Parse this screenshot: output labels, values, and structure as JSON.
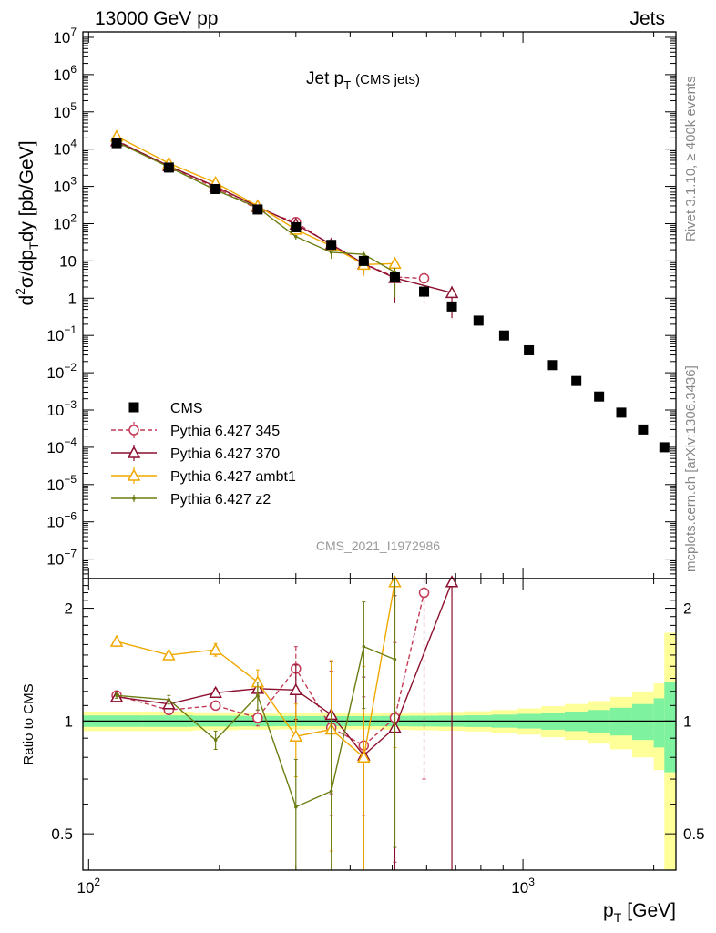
{
  "header": {
    "left": "13000 GeV pp",
    "right": "Jets"
  },
  "side_labels": {
    "rivet": "Rivet 3.1.10, ≥ 400k events",
    "mcplots": "mcplots.cern.ch [arXiv:1306.3436]"
  },
  "chart_data": {
    "type": "scatter",
    "title": "Jet p_T (CMS jets)",
    "title_main": "Jet p",
    "title_sub": "T",
    "title_tail": "(CMS jets)",
    "watermark": "CMS_2021_I1972986",
    "xlabel": "p_T [GeV]",
    "xlabel_main": "p",
    "xlabel_sub": "T",
    "xlabel_tail": "[GeV]",
    "xscale": "log",
    "xlim": [
      97,
      2250
    ],
    "x_tick_labels": [
      {
        "value": 100,
        "base": "10",
        "exp": "2"
      },
      {
        "value": 1000,
        "base": "10",
        "exp": "3"
      }
    ],
    "main": {
      "ylabel": "d²σ/dp_T dy [pb/GeV]",
      "ylabel_parts": {
        "a": "d",
        "a_sup": "2",
        "b": "σ/dp",
        "b_sub": "T",
        "c": "dy [pb/GeV]"
      },
      "yscale": "log",
      "ylim": [
        3e-08,
        14000000.0
      ],
      "y_tick_labels": [
        {
          "value": 10000000.0,
          "base": "10",
          "exp": "7"
        },
        {
          "value": 1000000.0,
          "base": "10",
          "exp": "6"
        },
        {
          "value": 100000.0,
          "base": "10",
          "exp": "5"
        },
        {
          "value": 10000.0,
          "base": "10",
          "exp": "4"
        },
        {
          "value": 1000.0,
          "base": "10",
          "exp": "3"
        },
        {
          "value": 100.0,
          "base": "10",
          "exp": "2"
        },
        {
          "value": 10,
          "base": "10",
          "exp": ""
        },
        {
          "value": 1,
          "base": "1",
          "exp": ""
        },
        {
          "value": 0.1,
          "base": "10",
          "exp": "−1"
        },
        {
          "value": 0.01,
          "base": "10",
          "exp": "−2"
        },
        {
          "value": 0.001,
          "base": "10",
          "exp": "−3"
        },
        {
          "value": 0.0001,
          "base": "10",
          "exp": "−4"
        },
        {
          "value": 1e-05,
          "base": "10",
          "exp": "−5"
        },
        {
          "value": 1e-06,
          "base": "10",
          "exp": "−6"
        },
        {
          "value": 1e-07,
          "base": "10",
          "exp": "−7"
        }
      ],
      "legend_position": "lower-left"
    },
    "ratio": {
      "ylabel": "Ratio to CMS",
      "yscale": "log",
      "ylim": [
        0.4,
        2.4
      ],
      "y_tick_labels": [
        {
          "value": 2,
          "label": "2"
        },
        {
          "value": 1,
          "label": "1"
        },
        {
          "value": 0.5,
          "label": "0.5"
        }
      ],
      "band_edges": [
        97,
        133,
        174,
        220,
        272,
        330,
        395,
        468,
        548,
        638,
        737,
        846,
        967,
        1101,
        1248,
        1410,
        1588,
        1784,
        2000,
        2116,
        2250
      ],
      "band_inner_half_width": [
        0.035,
        0.035,
        0.033,
        0.032,
        0.031,
        0.031,
        0.031,
        0.032,
        0.033,
        0.034,
        0.036,
        0.04,
        0.045,
        0.052,
        0.06,
        0.07,
        0.085,
        0.11,
        0.15,
        0.27
      ],
      "band_outer_half_width": [
        0.06,
        0.06,
        0.055,
        0.052,
        0.05,
        0.05,
        0.05,
        0.052,
        0.055,
        0.058,
        0.062,
        0.07,
        0.08,
        0.095,
        0.11,
        0.13,
        0.16,
        0.2,
        0.26,
        0.72
      ]
    },
    "series": [
      {
        "name": "CMS",
        "color": "#000000",
        "marker": "square",
        "x": [
          116,
          153,
          196,
          245,
          300,
          362,
          430,
          507,
          592,
          686,
          790,
          905,
          1032,
          1172,
          1327,
          1497,
          1684,
          1890,
          2116
        ],
        "y": [
          14500,
          3200,
          850,
          240,
          80,
          27,
          10,
          3.6,
          1.5,
          0.6,
          0.25,
          0.1,
          0.04,
          0.016,
          0.006,
          0.0023,
          0.00085,
          0.0003,
          0.0001
        ],
        "ratio": null
      },
      {
        "name": "Pythia 6.427 345",
        "color": "#c43a56",
        "marker": "circle-open",
        "dashed": true,
        "x": [
          116,
          153,
          196,
          245,
          300,
          362,
          430,
          507,
          592
        ],
        "y": [
          17000,
          3450,
          920,
          245,
          110,
          26,
          8.5,
          3.7,
          3.4
        ],
        "ratio": [
          1.17,
          1.07,
          1.1,
          1.02,
          1.38,
          0.96,
          0.86,
          1.02,
          2.2
        ],
        "ratio_err": [
          0.02,
          0.02,
          0.03,
          0.05,
          0.2,
          0.4,
          0.3,
          0.6,
          1.5
        ]
      },
      {
        "name": "Pythia 6.427 370",
        "color": "#8b0f2e",
        "marker": "triangle-open",
        "dashed": false,
        "x": [
          116,
          153,
          196,
          245,
          300,
          362,
          430,
          507,
          686
        ],
        "y": [
          16500,
          3550,
          1000,
          285,
          96,
          28,
          8.4,
          3.5,
          1.4
        ],
        "ratio": [
          1.16,
          1.11,
          1.19,
          1.22,
          1.21,
          1.04,
          0.81,
          0.96,
          2.35
        ],
        "ratio_err": [
          0.02,
          0.02,
          0.03,
          0.06,
          0.2,
          0.4,
          0.5,
          1.2,
          2.0
        ]
      },
      {
        "name": "Pythia 6.427 ambt1",
        "color": "#f0a800",
        "marker": "triangle-open",
        "dashed": false,
        "x": [
          116,
          153,
          196,
          245,
          300,
          362,
          430,
          507
        ],
        "y": [
          22000,
          4200,
          1250,
          300,
          70,
          25,
          8,
          8.5
        ],
        "ratio": [
          1.63,
          1.5,
          1.55,
          1.27,
          0.91,
          0.95,
          0.8,
          2.35
        ],
        "ratio_err": [
          0.03,
          0.03,
          0.06,
          0.1,
          0.2,
          0.5,
          0.6,
          1.5
        ]
      },
      {
        "name": "Pythia 6.427 z2",
        "color": "#6b7d12",
        "marker": "dot",
        "dashed": false,
        "x": [
          116,
          153,
          196,
          245,
          300,
          362,
          430,
          507
        ],
        "y": [
          15500,
          3300,
          800,
          270,
          45,
          17,
          15,
          5
        ],
        "ratio": [
          1.17,
          1.14,
          0.89,
          1.17,
          0.59,
          0.65,
          1.58,
          1.46
        ],
        "ratio_err": [
          0.02,
          0.03,
          0.05,
          0.1,
          0.2,
          0.4,
          0.5,
          1.0
        ]
      }
    ]
  }
}
